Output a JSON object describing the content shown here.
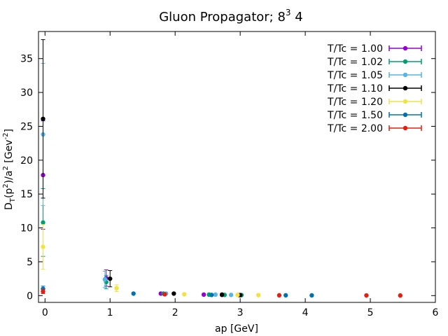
{
  "chart_data": {
    "type": "scatter",
    "title_main": "Gluon Propagator; 8",
    "title_sup": "3",
    "title_tail": " 4",
    "xlabel": "ap [GeV]",
    "ylabel_parts": [
      "D",
      "T",
      "(p",
      "2",
      ")/a",
      "2",
      " [Gev",
      "-2",
      "]"
    ],
    "xlim": [
      -0.1,
      6
    ],
    "ylim": [
      -1,
      39
    ],
    "x_ticks": [
      0,
      1,
      2,
      3,
      4,
      5,
      6
    ],
    "y_ticks": [
      0,
      5,
      10,
      15,
      20,
      25,
      30,
      35
    ],
    "legend_position": "top-right",
    "series": [
      {
        "name": "T/Tc = 1.00",
        "color": "#9400d3",
        "points": [
          [
            -0.03,
            17.8,
            8.0
          ],
          [
            0.94,
            2.6,
            1.2
          ],
          [
            1.78,
            0.3,
            0.05
          ],
          [
            2.44,
            0.15,
            0.02
          ],
          [
            2.72,
            0.1,
            0.02
          ],
          [
            2.98,
            0.08,
            0.02
          ]
        ]
      },
      {
        "name": "T/Tc = 1.02",
        "color": "#009e73",
        "points": [
          [
            -0.03,
            10.8,
            5.0
          ],
          [
            0.94,
            2.0,
            1.0
          ],
          [
            1.82,
            0.3,
            0.05
          ],
          [
            2.52,
            0.15,
            0.02
          ],
          [
            2.76,
            0.1,
            0.02
          ],
          [
            3.02,
            0.08,
            0.02
          ]
        ]
      },
      {
        "name": "T/Tc = 1.05",
        "color": "#56b4e9",
        "points": [
          [
            -0.03,
            23.8,
            10.5
          ],
          [
            0.92,
            2.4,
            1.2
          ],
          [
            1.86,
            0.3,
            0.05
          ],
          [
            2.62,
            0.15,
            0.02
          ],
          [
            2.86,
            0.1,
            0.02
          ]
        ]
      },
      {
        "name": "T/Tc = 1.10",
        "color": "#000000",
        "points": [
          [
            -0.03,
            26.1,
            11.7
          ],
          [
            1.0,
            2.5,
            1.2
          ],
          [
            1.98,
            0.3,
            0.05
          ],
          [
            2.72,
            0.15,
            0.02
          ],
          [
            3.0,
            0.08,
            0.02
          ]
        ]
      },
      {
        "name": "T/Tc = 1.20",
        "color": "#f0e442",
        "points": [
          [
            -0.03,
            7.2,
            3.3
          ],
          [
            1.1,
            1.1,
            0.5
          ],
          [
            2.14,
            0.2,
            0.05
          ],
          [
            2.96,
            0.1,
            0.02
          ],
          [
            3.28,
            0.08,
            0.02
          ]
        ]
      },
      {
        "name": "T/Tc = 1.50",
        "color": "#0072b2",
        "points": [
          [
            -0.03,
            1.0,
            0.4
          ],
          [
            1.36,
            0.3,
            0.1
          ],
          [
            2.56,
            0.1,
            0.02
          ],
          [
            3.7,
            0.05,
            0.01
          ],
          [
            4.1,
            0.04,
            0.01
          ]
        ]
      },
      {
        "name": "T/Tc = 2.00",
        "color": "#e51e10",
        "points": [
          [
            -0.03,
            0.6,
            0.3
          ],
          [
            1.84,
            0.2,
            0.05
          ],
          [
            3.6,
            0.05,
            0.01
          ],
          [
            4.94,
            0.03,
            0.01
          ],
          [
            5.46,
            0.02,
            0.01
          ]
        ]
      }
    ]
  }
}
